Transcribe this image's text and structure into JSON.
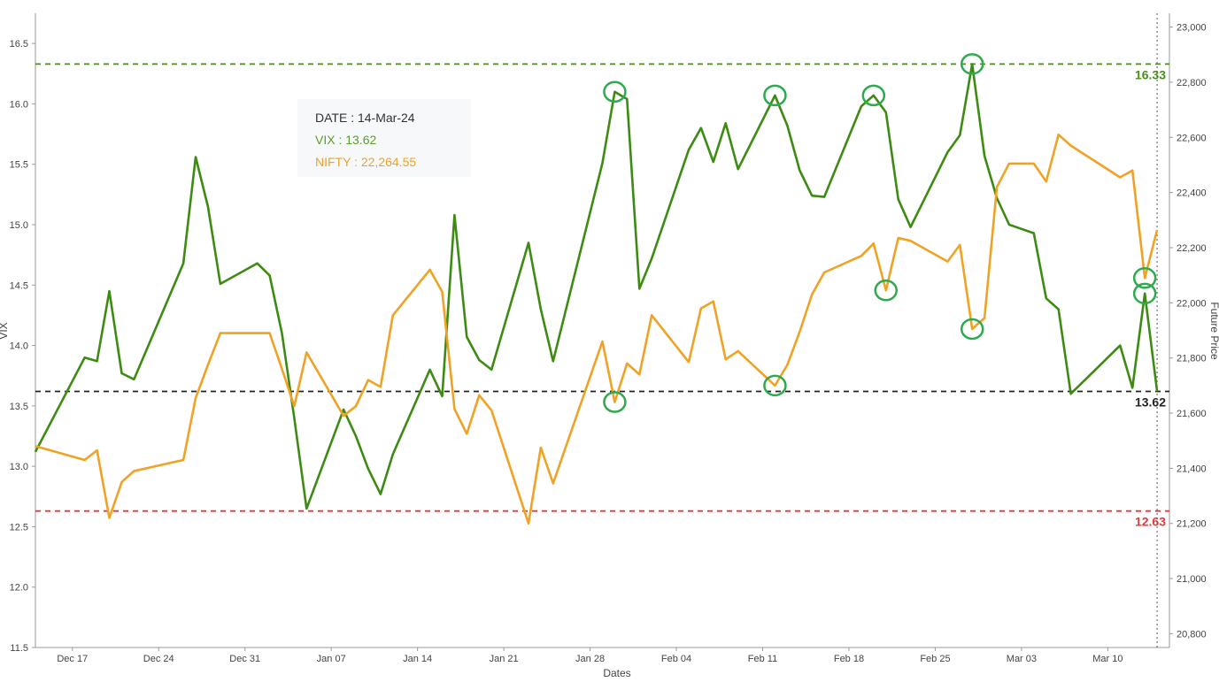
{
  "chart_data": {
    "type": "line",
    "xlabel": "Dates",
    "ylabel_left": "VIX",
    "ylabel_right": "Future Price",
    "x_ticks": [
      "Dec 17",
      "Dec 24",
      "Dec 31",
      "Jan 07",
      "Jan 14",
      "Jan 21",
      "Jan 28",
      "Feb 04",
      "Feb 11",
      "Feb 18",
      "Feb 25",
      "Mar 03",
      "Mar 10"
    ],
    "y_left": {
      "min": 11.5,
      "max": 16.75,
      "ticks": [
        "11.5",
        "12.0",
        "12.5",
        "13.0",
        "13.5",
        "14.0",
        "14.5",
        "15.0",
        "15.5",
        "16.0",
        "16.5"
      ]
    },
    "y_right": {
      "min": 20750,
      "max": 23050,
      "ticks": [
        "20,800",
        "21,000",
        "21,200",
        "21,400",
        "21,600",
        "21,800",
        "22,000",
        "22,200",
        "22,400",
        "22,600",
        "22,800",
        "23,000"
      ]
    },
    "x_range": [
      "2023-12-14",
      "2024-03-15"
    ],
    "series": [
      {
        "name": "VIX",
        "axis": "left",
        "color": "#3d8b12",
        "points": [
          [
            "2023-12-14",
            13.12
          ],
          [
            "2023-12-18",
            13.9
          ],
          [
            "2023-12-19",
            13.87
          ],
          [
            "2023-12-20",
            14.45
          ],
          [
            "2023-12-21",
            13.77
          ],
          [
            "2023-12-22",
            13.72
          ],
          [
            "2023-12-26",
            14.68
          ],
          [
            "2023-12-27",
            15.56
          ],
          [
            "2023-12-28",
            15.15
          ],
          [
            "2023-12-29",
            14.51
          ],
          [
            "2024-01-01",
            14.68
          ],
          [
            "2024-01-02",
            14.58
          ],
          [
            "2024-01-03",
            14.1
          ],
          [
            "2024-01-04",
            13.4
          ],
          [
            "2024-01-05",
            12.65
          ],
          [
            "2024-01-08",
            13.47
          ],
          [
            "2024-01-09",
            13.25
          ],
          [
            "2024-01-10",
            12.98
          ],
          [
            "2024-01-11",
            12.77
          ],
          [
            "2024-01-12",
            13.1
          ],
          [
            "2024-01-15",
            13.8
          ],
          [
            "2024-01-16",
            13.58
          ],
          [
            "2024-01-17",
            15.08
          ],
          [
            "2024-01-18",
            14.07
          ],
          [
            "2024-01-19",
            13.88
          ],
          [
            "2024-01-20",
            13.8
          ],
          [
            "2024-01-23",
            14.85
          ],
          [
            "2024-01-24",
            14.3
          ],
          [
            "2024-01-25",
            13.87
          ],
          [
            "2024-01-29",
            15.51
          ],
          [
            "2024-01-30",
            16.1
          ],
          [
            "2024-01-31",
            16.04
          ],
          [
            "2024-02-01",
            14.47
          ],
          [
            "2024-02-02",
            14.72
          ],
          [
            "2024-02-05",
            15.62
          ],
          [
            "2024-02-06",
            15.8
          ],
          [
            "2024-02-07",
            15.52
          ],
          [
            "2024-02-08",
            15.84
          ],
          [
            "2024-02-09",
            15.46
          ],
          [
            "2024-02-12",
            16.07
          ],
          [
            "2024-02-13",
            15.82
          ],
          [
            "2024-02-14",
            15.45
          ],
          [
            "2024-02-15",
            15.24
          ],
          [
            "2024-02-16",
            15.23
          ],
          [
            "2024-02-19",
            15.98
          ],
          [
            "2024-02-20",
            16.07
          ],
          [
            "2024-02-21",
            15.93
          ],
          [
            "2024-02-22",
            15.21
          ],
          [
            "2024-02-23",
            14.98
          ],
          [
            "2024-02-26",
            15.6
          ],
          [
            "2024-02-27",
            15.74
          ],
          [
            "2024-02-28",
            16.33
          ],
          [
            "2024-02-29",
            15.57
          ],
          [
            "2024-03-01",
            15.22
          ],
          [
            "2024-03-02",
            15.0
          ],
          [
            "2024-03-04",
            14.93
          ],
          [
            "2024-03-05",
            14.39
          ],
          [
            "2024-03-06",
            14.3
          ],
          [
            "2024-03-07",
            13.6
          ],
          [
            "2024-03-11",
            14.0
          ],
          [
            "2024-03-12",
            13.65
          ],
          [
            "2024-03-13",
            14.43
          ],
          [
            "2024-03-14",
            13.62
          ]
        ]
      },
      {
        "name": "NIFTY",
        "axis": "right",
        "color": "#f0a225",
        "points": [
          [
            "2023-12-14",
            21480
          ],
          [
            "2023-12-18",
            21430
          ],
          [
            "2023-12-19",
            21465
          ],
          [
            "2023-12-20",
            21220
          ],
          [
            "2023-12-21",
            21350
          ],
          [
            "2023-12-22",
            21390
          ],
          [
            "2023-12-26",
            21430
          ],
          [
            "2023-12-27",
            21655
          ],
          [
            "2023-12-28",
            21775
          ],
          [
            "2023-12-29",
            21890
          ],
          [
            "2024-01-01",
            21890
          ],
          [
            "2024-01-02",
            21890
          ],
          [
            "2024-01-03",
            21760
          ],
          [
            "2024-01-04",
            21625
          ],
          [
            "2024-01-05",
            21820
          ],
          [
            "2024-01-08",
            21590
          ],
          [
            "2024-01-09",
            21625
          ],
          [
            "2024-01-10",
            21720
          ],
          [
            "2024-01-11",
            21695
          ],
          [
            "2024-01-12",
            21955
          ],
          [
            "2024-01-15",
            22120
          ],
          [
            "2024-01-16",
            22040
          ],
          [
            "2024-01-17",
            21615
          ],
          [
            "2024-01-18",
            21525
          ],
          [
            "2024-01-19",
            21665
          ],
          [
            "2024-01-20",
            21610
          ],
          [
            "2024-01-23",
            21200
          ],
          [
            "2024-01-24",
            21475
          ],
          [
            "2024-01-25",
            21345
          ],
          [
            "2024-01-29",
            21860
          ],
          [
            "2024-01-30",
            21640
          ],
          [
            "2024-01-31",
            21780
          ],
          [
            "2024-02-01",
            21740
          ],
          [
            "2024-02-02",
            21955
          ],
          [
            "2024-02-05",
            21785
          ],
          [
            "2024-02-06",
            21980
          ],
          [
            "2024-02-07",
            22005
          ],
          [
            "2024-02-08",
            21795
          ],
          [
            "2024-02-09",
            21825
          ],
          [
            "2024-02-12",
            21700
          ],
          [
            "2024-02-13",
            21775
          ],
          [
            "2024-02-14",
            21895
          ],
          [
            "2024-02-15",
            22030
          ],
          [
            "2024-02-16",
            22110
          ],
          [
            "2024-02-19",
            22170
          ],
          [
            "2024-02-20",
            22215
          ],
          [
            "2024-02-21",
            22045
          ],
          [
            "2024-02-22",
            22235
          ],
          [
            "2024-02-23",
            22225
          ],
          [
            "2024-02-26",
            22150
          ],
          [
            "2024-02-27",
            22210
          ],
          [
            "2024-02-28",
            21905
          ],
          [
            "2024-02-29",
            21945
          ],
          [
            "2024-03-01",
            22420
          ],
          [
            "2024-03-02",
            22505
          ],
          [
            "2024-03-04",
            22505
          ],
          [
            "2024-03-05",
            22440
          ],
          [
            "2024-03-06",
            22610
          ],
          [
            "2024-03-07",
            22570
          ],
          [
            "2024-03-11",
            22455
          ],
          [
            "2024-03-12",
            22480
          ],
          [
            "2024-03-13",
            22090
          ],
          [
            "2024-03-14",
            22264.55
          ]
        ]
      }
    ],
    "reference_lines": [
      {
        "value": 16.33,
        "label": "16.33",
        "color": "#4a8e1f",
        "style": "dashed"
      },
      {
        "value": 13.62,
        "label": "13.62",
        "color": "#222222",
        "style": "dashed"
      },
      {
        "value": 12.63,
        "label": "12.63",
        "color": "#e23b3b",
        "style": "dashed"
      }
    ],
    "cursor_date": "2024-03-14",
    "tooltip": {
      "date_line": "DATE : 14-Mar-24",
      "vix_line": "VIX : 13.62",
      "nifty_line": "NIFTY : 22,264.55"
    },
    "highlights": [
      {
        "date": "2024-01-30",
        "series": "VIX"
      },
      {
        "date": "2024-01-30",
        "series": "NIFTY"
      },
      {
        "date": "2024-02-12",
        "series": "VIX"
      },
      {
        "date": "2024-02-12",
        "series": "NIFTY"
      },
      {
        "date": "2024-02-20",
        "series": "VIX"
      },
      {
        "date": "2024-02-21",
        "series": "NIFTY"
      },
      {
        "date": "2024-02-28",
        "series": "VIX"
      },
      {
        "date": "2024-02-28",
        "series": "NIFTY"
      },
      {
        "date": "2024-03-13",
        "series": "VIX"
      },
      {
        "date": "2024-03-13",
        "series": "NIFTY"
      }
    ],
    "grid": false,
    "legend": "none"
  }
}
